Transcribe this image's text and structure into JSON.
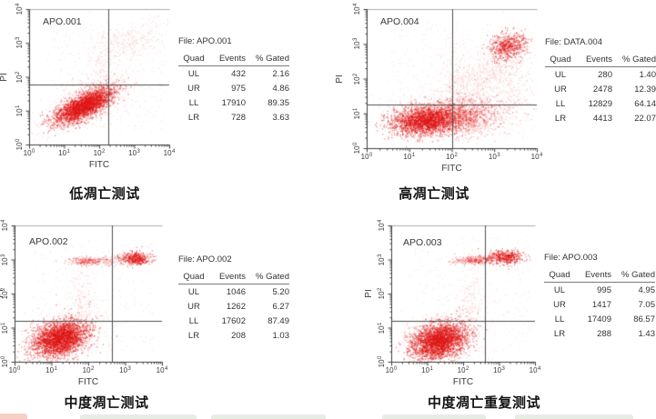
{
  "colors": {
    "dot": "#e01414",
    "axis": "#3f3f3f",
    "frame": "#adadad",
    "gate": "#4d4d4d"
  },
  "chart_data": [
    {
      "type": "scatter",
      "panel_label": "APO.001",
      "file_label": "File: APO.001",
      "caption": "低凋亡测试",
      "xlabel": "FITC",
      "ylabel": "PI",
      "x_axis": {
        "scale": "log",
        "min_exp": 0,
        "max_exp": 4
      },
      "y_axis": {
        "scale": "log",
        "min_exp": 0,
        "max_exp": 4
      },
      "ticks": {
        "base": "10",
        "exps": [
          "0",
          "1",
          "2",
          "3",
          "4"
        ]
      },
      "gate": {
        "x_log": 2.25,
        "y_log": 1.78
      },
      "table": {
        "headers": [
          "Quad",
          "Events",
          "% Gated"
        ],
        "rows": [
          [
            "UL",
            "432",
            "2.16"
          ],
          [
            "UR",
            "975",
            "4.86"
          ],
          [
            "LL",
            "17910",
            "89.35"
          ],
          [
            "LR",
            "728",
            "3.63"
          ]
        ]
      },
      "clusters": [
        {
          "cx": 1.55,
          "cy": 1.15,
          "sx": 0.45,
          "sy": 0.16,
          "rot": 28,
          "n": 2600,
          "alpha": 0.5
        },
        {
          "cx": 1.6,
          "cy": 1.2,
          "sx": 0.62,
          "sy": 0.3,
          "rot": 28,
          "n": 800,
          "alpha": 0.14
        },
        {
          "cx": 2.95,
          "cy": 3.0,
          "sx": 0.5,
          "sy": 0.28,
          "rot": 15,
          "n": 260,
          "alpha": 0.13
        },
        {
          "cx": 2.1,
          "cy": 2.35,
          "sx": 0.2,
          "sy": 0.55,
          "rot": 0,
          "n": 160,
          "alpha": 0.12
        },
        {
          "cx": 2.35,
          "cy": 1.78,
          "sx": 0.5,
          "sy": 0.12,
          "rot": 0,
          "n": 120,
          "alpha": 0.12
        }
      ],
      "uniform": {
        "n": 320,
        "alpha": 0.09,
        "x": [
          0.5,
          3.9
        ],
        "y": [
          0.4,
          3.6
        ]
      }
    },
    {
      "type": "scatter",
      "panel_label": "APO.004",
      "file_label": "File: DATA.004",
      "caption": "高凋亡测试",
      "xlabel": "FITC",
      "ylabel": "PI",
      "x_axis": {
        "scale": "log",
        "min_exp": 0,
        "max_exp": 4
      },
      "y_axis": {
        "scale": "log",
        "min_exp": 0,
        "max_exp": 4
      },
      "ticks": {
        "base": "10",
        "exps": [
          "0",
          "1",
          "2",
          "3",
          "4"
        ]
      },
      "gate": {
        "x_log": 2.0,
        "y_log": 1.25
      },
      "table": {
        "headers": [
          "Quad",
          "Events",
          "% Gated"
        ],
        "rows": [
          [
            "UL",
            "280",
            "1.40"
          ],
          [
            "UR",
            "2478",
            "12.39"
          ],
          [
            "LL",
            "12829",
            "64.14"
          ],
          [
            "LR",
            "4413",
            "22.07"
          ]
        ]
      },
      "clusters": [
        {
          "cx": 1.4,
          "cy": 0.82,
          "sx": 0.42,
          "sy": 0.2,
          "rot": 8,
          "n": 2400,
          "alpha": 0.5
        },
        {
          "cx": 2.3,
          "cy": 0.95,
          "sx": 0.5,
          "sy": 0.26,
          "rot": 5,
          "n": 1100,
          "alpha": 0.3
        },
        {
          "cx": 1.8,
          "cy": 0.95,
          "sx": 0.75,
          "sy": 0.35,
          "rot": 5,
          "n": 700,
          "alpha": 0.12
        },
        {
          "cx": 3.3,
          "cy": 2.95,
          "sx": 0.22,
          "sy": 0.17,
          "rot": 20,
          "n": 550,
          "alpha": 0.5
        },
        {
          "cx": 2.75,
          "cy": 2.1,
          "sx": 0.65,
          "sy": 0.3,
          "rot": 38,
          "n": 650,
          "alpha": 0.13
        },
        {
          "cx": 2.05,
          "cy": 1.9,
          "sx": 0.17,
          "sy": 0.6,
          "rot": 0,
          "n": 170,
          "alpha": 0.12
        },
        {
          "cx": 3.4,
          "cy": 1.8,
          "sx": 0.25,
          "sy": 0.7,
          "rot": 0,
          "n": 250,
          "alpha": 0.12
        }
      ],
      "uniform": {
        "n": 420,
        "alpha": 0.09,
        "x": [
          0.5,
          3.95
        ],
        "y": [
          0.3,
          3.7
        ]
      }
    },
    {
      "type": "scatter",
      "panel_label": "APO.002",
      "file_label": "File: APO.002",
      "caption": "中度凋亡测试",
      "xlabel": "FITC",
      "ylabel": "PI",
      "x_axis": {
        "scale": "log",
        "min_exp": 0,
        "max_exp": 4
      },
      "y_axis": {
        "scale": "log",
        "min_exp": 0,
        "max_exp": 4
      },
      "ticks": {
        "base": "10",
        "exps": [
          "0",
          "1",
          "2",
          "3",
          "4"
        ]
      },
      "gate": {
        "x_log": 2.65,
        "y_log": 1.2
      },
      "table": {
        "headers": [
          "Quad",
          "Events",
          "% Gated"
        ],
        "rows": [
          [
            "UL",
            "1046",
            "5.20"
          ],
          [
            "UR",
            "1262",
            "6.27"
          ],
          [
            "LL",
            "17602",
            "87.49"
          ],
          [
            "LR",
            "208",
            "1.03"
          ]
        ]
      },
      "clusters": [
        {
          "cx": 1.22,
          "cy": 0.7,
          "sx": 0.38,
          "sy": 0.24,
          "rot": 22,
          "n": 2800,
          "alpha": 0.5
        },
        {
          "cx": 1.3,
          "cy": 0.78,
          "sx": 0.55,
          "sy": 0.38,
          "rot": 22,
          "n": 700,
          "alpha": 0.13
        },
        {
          "cx": 2.0,
          "cy": 2.97,
          "sx": 0.3,
          "sy": 0.06,
          "rot": 0,
          "n": 260,
          "alpha": 0.3
        },
        {
          "cx": 3.28,
          "cy": 3.05,
          "sx": 0.2,
          "sy": 0.09,
          "rot": 0,
          "n": 430,
          "alpha": 0.5
        },
        {
          "cx": 2.75,
          "cy": 3.0,
          "sx": 0.3,
          "sy": 0.07,
          "rot": 0,
          "n": 110,
          "alpha": 0.16
        },
        {
          "cx": 1.8,
          "cy": 1.9,
          "sx": 0.17,
          "sy": 0.6,
          "rot": 0,
          "n": 150,
          "alpha": 0.12
        }
      ],
      "uniform": {
        "n": 300,
        "alpha": 0.09,
        "x": [
          0.5,
          3.8
        ],
        "y": [
          0.3,
          3.6
        ]
      }
    },
    {
      "type": "scatter",
      "panel_label": "APO.003",
      "file_label": "File: APO.003",
      "caption": "中度凋亡重复测试",
      "xlabel": "FITC",
      "ylabel": "PI",
      "x_axis": {
        "scale": "log",
        "min_exp": 0,
        "max_exp": 4
      },
      "y_axis": {
        "scale": "log",
        "min_exp": 0,
        "max_exp": 4
      },
      "ticks": {
        "base": "10",
        "exps": [
          "0",
          "1",
          "2",
          "3",
          "4"
        ]
      },
      "gate": {
        "x_log": 2.6,
        "y_log": 1.2
      },
      "table": {
        "headers": [
          "Quad",
          "Events",
          "% Gated"
        ],
        "rows": [
          [
            "UL",
            "995",
            "4.95"
          ],
          [
            "UR",
            "1417",
            "7.05"
          ],
          [
            "LL",
            "17409",
            "86.57"
          ],
          [
            "LR",
            "288",
            "1.43"
          ]
        ]
      },
      "clusters": [
        {
          "cx": 1.32,
          "cy": 0.62,
          "sx": 0.4,
          "sy": 0.25,
          "rot": 20,
          "n": 2800,
          "alpha": 0.5
        },
        {
          "cx": 1.42,
          "cy": 0.72,
          "sx": 0.58,
          "sy": 0.38,
          "rot": 20,
          "n": 700,
          "alpha": 0.13
        },
        {
          "cx": 2.3,
          "cy": 3.0,
          "sx": 0.28,
          "sy": 0.06,
          "rot": 0,
          "n": 280,
          "alpha": 0.3
        },
        {
          "cx": 3.18,
          "cy": 3.08,
          "sx": 0.24,
          "sy": 0.1,
          "rot": 0,
          "n": 450,
          "alpha": 0.5
        },
        {
          "cx": 2.62,
          "cy": 3.02,
          "sx": 0.12,
          "sy": 0.06,
          "rot": 0,
          "n": 90,
          "alpha": 0.2
        },
        {
          "cx": 2.2,
          "cy": 1.8,
          "sx": 0.16,
          "sy": 0.65,
          "rot": 0,
          "n": 170,
          "alpha": 0.12
        }
      ],
      "uniform": {
        "n": 300,
        "alpha": 0.09,
        "x": [
          0.5,
          3.85
        ],
        "y": [
          0.3,
          3.7
        ]
      }
    }
  ]
}
